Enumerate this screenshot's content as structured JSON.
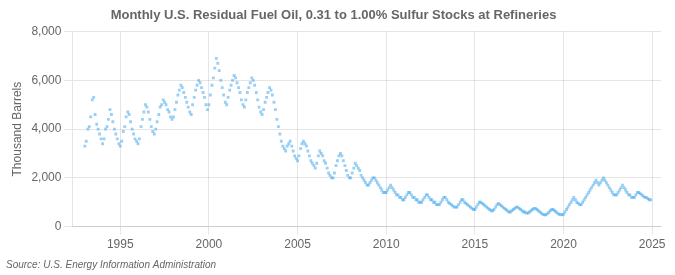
{
  "chart_data": {
    "type": "scatter",
    "title": "Monthly U.S. Residual Fuel Oil, 0.31 to 1.00% Sulfur Stocks at Refineries",
    "y_label": "Thousand Barrels",
    "annotations": [
      "Source: U.S. Energy Information Administration"
    ],
    "marker": "square",
    "grid": true,
    "xlim": [
      1992.3,
      2025.5
    ],
    "xticks": [
      1995,
      2000,
      2005,
      2010,
      2015,
      2020,
      2025
    ],
    "ylim": [
      0,
      8000
    ],
    "yticks": [
      0,
      {
        "value": 2000,
        "label": "2,000"
      },
      {
        "value": 4000,
        "label": "4,000"
      },
      {
        "value": 6000,
        "label": "6,000"
      },
      {
        "value": 8000,
        "label": "8,000"
      }
    ],
    "x": [
      1993.0,
      1993.08,
      1993.17,
      1993.25,
      1993.33,
      1993.42,
      1993.5,
      1993.58,
      1993.67,
      1993.75,
      1993.83,
      1993.92,
      1994.0,
      1994.08,
      1994.17,
      1994.25,
      1994.33,
      1994.42,
      1994.5,
      1994.58,
      1994.67,
      1994.75,
      1994.83,
      1994.92,
      1995.0,
      1995.08,
      1995.17,
      1995.25,
      1995.33,
      1995.42,
      1995.5,
      1995.58,
      1995.67,
      1995.75,
      1995.83,
      1995.92,
      1996.0,
      1996.08,
      1996.17,
      1996.25,
      1996.33,
      1996.42,
      1996.5,
      1996.58,
      1996.67,
      1996.75,
      1996.83,
      1996.92,
      1997.0,
      1997.08,
      1997.17,
      1997.25,
      1997.33,
      1997.42,
      1997.5,
      1997.58,
      1997.67,
      1997.75,
      1997.83,
      1997.92,
      1998.0,
      1998.08,
      1998.17,
      1998.25,
      1998.33,
      1998.42,
      1998.5,
      1998.58,
      1998.67,
      1998.75,
      1998.83,
      1998.92,
      1999.0,
      1999.08,
      1999.17,
      1999.25,
      1999.33,
      1999.42,
      1999.5,
      1999.58,
      1999.67,
      1999.75,
      1999.83,
      1999.92,
      2000.0,
      2000.08,
      2000.17,
      2000.25,
      2000.33,
      2000.42,
      2000.5,
      2000.58,
      2000.67,
      2000.75,
      2000.83,
      2000.92,
      2001.0,
      2001.08,
      2001.17,
      2001.25,
      2001.33,
      2001.42,
      2001.5,
      2001.58,
      2001.67,
      2001.75,
      2001.83,
      2001.92,
      2002.0,
      2002.08,
      2002.17,
      2002.25,
      2002.33,
      2002.42,
      2002.5,
      2002.58,
      2002.67,
      2002.75,
      2002.83,
      2002.92,
      2003.0,
      2003.08,
      2003.17,
      2003.25,
      2003.33,
      2003.42,
      2003.5,
      2003.58,
      2003.67,
      2003.75,
      2003.83,
      2003.92,
      2004.0,
      2004.08,
      2004.17,
      2004.25,
      2004.33,
      2004.42,
      2004.5,
      2004.58,
      2004.67,
      2004.75,
      2004.83,
      2004.92,
      2005.0,
      2005.08,
      2005.17,
      2005.25,
      2005.33,
      2005.42,
      2005.5,
      2005.58,
      2005.67,
      2005.75,
      2005.83,
      2005.92,
      2006.0,
      2006.08,
      2006.17,
      2006.25,
      2006.33,
      2006.42,
      2006.5,
      2006.58,
      2006.67,
      2006.75,
      2006.83,
      2006.92,
      2007.0,
      2007.08,
      2007.17,
      2007.25,
      2007.33,
      2007.42,
      2007.5,
      2007.58,
      2007.67,
      2007.75,
      2007.83,
      2007.92,
      2008.0,
      2008.08,
      2008.17,
      2008.25,
      2008.33,
      2008.42,
      2008.5,
      2008.58,
      2008.67,
      2008.75,
      2008.83,
      2008.92,
      2009.0,
      2009.08,
      2009.17,
      2009.25,
      2009.33,
      2009.42,
      2009.5,
      2009.58,
      2009.67,
      2009.75,
      2009.83,
      2009.92,
      2010.0,
      2010.08,
      2010.17,
      2010.25,
      2010.33,
      2010.42,
      2010.5,
      2010.58,
      2010.67,
      2010.75,
      2010.83,
      2010.92,
      2011.0,
      2011.08,
      2011.17,
      2011.25,
      2011.33,
      2011.42,
      2011.5,
      2011.58,
      2011.67,
      2011.75,
      2011.83,
      2011.92,
      2012.0,
      2012.08,
      2012.17,
      2012.25,
      2012.33,
      2012.42,
      2012.5,
      2012.58,
      2012.67,
      2012.75,
      2012.83,
      2012.92,
      2013.0,
      2013.08,
      2013.17,
      2013.25,
      2013.33,
      2013.42,
      2013.5,
      2013.58,
      2013.67,
      2013.75,
      2013.83,
      2013.92,
      2014.0,
      2014.08,
      2014.17,
      2014.25,
      2014.33,
      2014.42,
      2014.5,
      2014.58,
      2014.67,
      2014.75,
      2014.83,
      2014.92,
      2015.0,
      2015.08,
      2015.17,
      2015.25,
      2015.33,
      2015.42,
      2015.5,
      2015.58,
      2015.67,
      2015.75,
      2015.83,
      2015.92,
      2016.0,
      2016.08,
      2016.17,
      2016.25,
      2016.33,
      2016.42,
      2016.5,
      2016.58,
      2016.67,
      2016.75,
      2016.83,
      2016.92,
      2017.0,
      2017.08,
      2017.17,
      2017.25,
      2017.33,
      2017.42,
      2017.5,
      2017.58,
      2017.67,
      2017.75,
      2017.83,
      2017.92,
      2018.0,
      2018.08,
      2018.17,
      2018.25,
      2018.33,
      2018.42,
      2018.5,
      2018.58,
      2018.67,
      2018.75,
      2018.83,
      2018.92,
      2019.0,
      2019.08,
      2019.17,
      2019.25,
      2019.33,
      2019.42,
      2019.5,
      2019.58,
      2019.67,
      2019.75,
      2019.83,
      2019.92,
      2020.0,
      2020.08,
      2020.17,
      2020.25,
      2020.33,
      2020.42,
      2020.5,
      2020.58,
      2020.67,
      2020.75,
      2020.83,
      2020.92,
      2021.0,
      2021.08,
      2021.17,
      2021.25,
      2021.33,
      2021.42,
      2021.5,
      2021.58,
      2021.67,
      2021.75,
      2021.83,
      2021.92,
      2022.0,
      2022.08,
      2022.17,
      2022.25,
      2022.33,
      2022.42,
      2022.5,
      2022.58,
      2022.67,
      2022.75,
      2022.83,
      2022.92,
      2023.0,
      2023.08,
      2023.17,
      2023.25,
      2023.33,
      2023.42,
      2023.5,
      2023.58,
      2023.67,
      2023.75,
      2023.83,
      2023.92,
      2024.0,
      2024.08,
      2024.17,
      2024.25,
      2024.33,
      2024.42,
      2024.5,
      2024.58,
      2024.67,
      2024.75,
      2024.83,
      2024.92
    ],
    "values": [
      3300,
      3500,
      4000,
      4100,
      4500,
      5200,
      5300,
      4600,
      4200,
      4000,
      3800,
      3600,
      3400,
      3600,
      4000,
      4100,
      4400,
      4800,
      4600,
      4300,
      4000,
      3800,
      3600,
      3400,
      3300,
      3500,
      3900,
      4100,
      4500,
      4700,
      4600,
      4300,
      4000,
      3800,
      3600,
      3500,
      3400,
      3600,
      4100,
      4400,
      4700,
      5000,
      4900,
      4700,
      4400,
      4100,
      3900,
      3800,
      4000,
      4300,
      4600,
      4900,
      5000,
      5200,
      5100,
      5000,
      4800,
      4700,
      4500,
      4400,
      4500,
      4800,
      5100,
      5400,
      5600,
      5800,
      5700,
      5500,
      5300,
      5100,
      4900,
      4700,
      4600,
      5000,
      5300,
      5600,
      5800,
      6000,
      5900,
      5700,
      5500,
      5300,
      5000,
      4800,
      5000,
      5400,
      5800,
      6100,
      6500,
      6900,
      6700,
      6400,
      6000,
      5700,
      5400,
      5100,
      5000,
      5300,
      5600,
      5800,
      6000,
      6200,
      6100,
      5900,
      5700,
      5500,
      5200,
      5000,
      4900,
      5200,
      5500,
      5700,
      5900,
      6100,
      6000,
      5800,
      5500,
      5200,
      4900,
      4700,
      4600,
      4800,
      5100,
      5300,
      5500,
      5700,
      5600,
      5400,
      5100,
      4800,
      4400,
      4100,
      3800,
      3500,
      3300,
      3200,
      3100,
      3300,
      3400,
      3500,
      3300,
      3100,
      2900,
      2800,
      2700,
      2900,
      3200,
      3400,
      3500,
      3400,
      3300,
      3100,
      2900,
      2700,
      2600,
      2500,
      2400,
      2600,
      2900,
      3100,
      3000,
      2900,
      2700,
      2600,
      2400,
      2200,
      2100,
      2000,
      2000,
      2200,
      2500,
      2700,
      2900,
      3000,
      2900,
      2700,
      2500,
      2300,
      2100,
      2000,
      2000,
      2200,
      2400,
      2600,
      2500,
      2400,
      2300,
      2100,
      2000,
      1900,
      1800,
      1700,
      1700,
      1800,
      1900,
      2000,
      2000,
      1900,
      1800,
      1700,
      1600,
      1500,
      1400,
      1400,
      1400,
      1500,
      1600,
      1700,
      1600,
      1500,
      1400,
      1300,
      1300,
      1200,
      1200,
      1100,
      1100,
      1200,
      1300,
      1400,
      1400,
      1300,
      1200,
      1200,
      1100,
      1100,
      1000,
      1000,
      1000,
      1100,
      1200,
      1300,
      1300,
      1200,
      1100,
      1100,
      1000,
      1000,
      900,
      900,
      900,
      1000,
      1100,
      1200,
      1200,
      1100,
      1000,
      950,
      900,
      850,
      800,
      800,
      800,
      900,
      1000,
      1100,
      1100,
      1000,
      950,
      900,
      850,
      800,
      750,
      700,
      700,
      800,
      900,
      1000,
      1000,
      950,
      900,
      850,
      800,
      750,
      700,
      650,
      650,
      700,
      800,
      900,
      950,
      900,
      850,
      800,
      750,
      700,
      650,
      600,
      600,
      650,
      700,
      750,
      800,
      800,
      750,
      700,
      650,
      600,
      600,
      550,
      550,
      600,
      650,
      700,
      750,
      750,
      700,
      650,
      600,
      550,
      500,
      480,
      480,
      520,
      580,
      650,
      700,
      700,
      650,
      600,
      550,
      500,
      500,
      480,
      500,
      600,
      700,
      800,
      900,
      1000,
      1100,
      1200,
      1100,
      1000,
      950,
      900,
      900,
      1000,
      1100,
      1200,
      1300,
      1400,
      1500,
      1600,
      1700,
      1800,
      1900,
      1800,
      1700,
      1800,
      1900,
      2000,
      1900,
      1800,
      1700,
      1600,
      1500,
      1400,
      1300,
      1300,
      1300,
      1400,
      1500,
      1600,
      1700,
      1600,
      1500,
      1400,
      1300,
      1300,
      1200,
      1200,
      1200,
      1300,
      1400,
      1400,
      1350,
      1300,
      1250,
      1200,
      1200,
      1150,
      1100,
      1100
    ]
  }
}
